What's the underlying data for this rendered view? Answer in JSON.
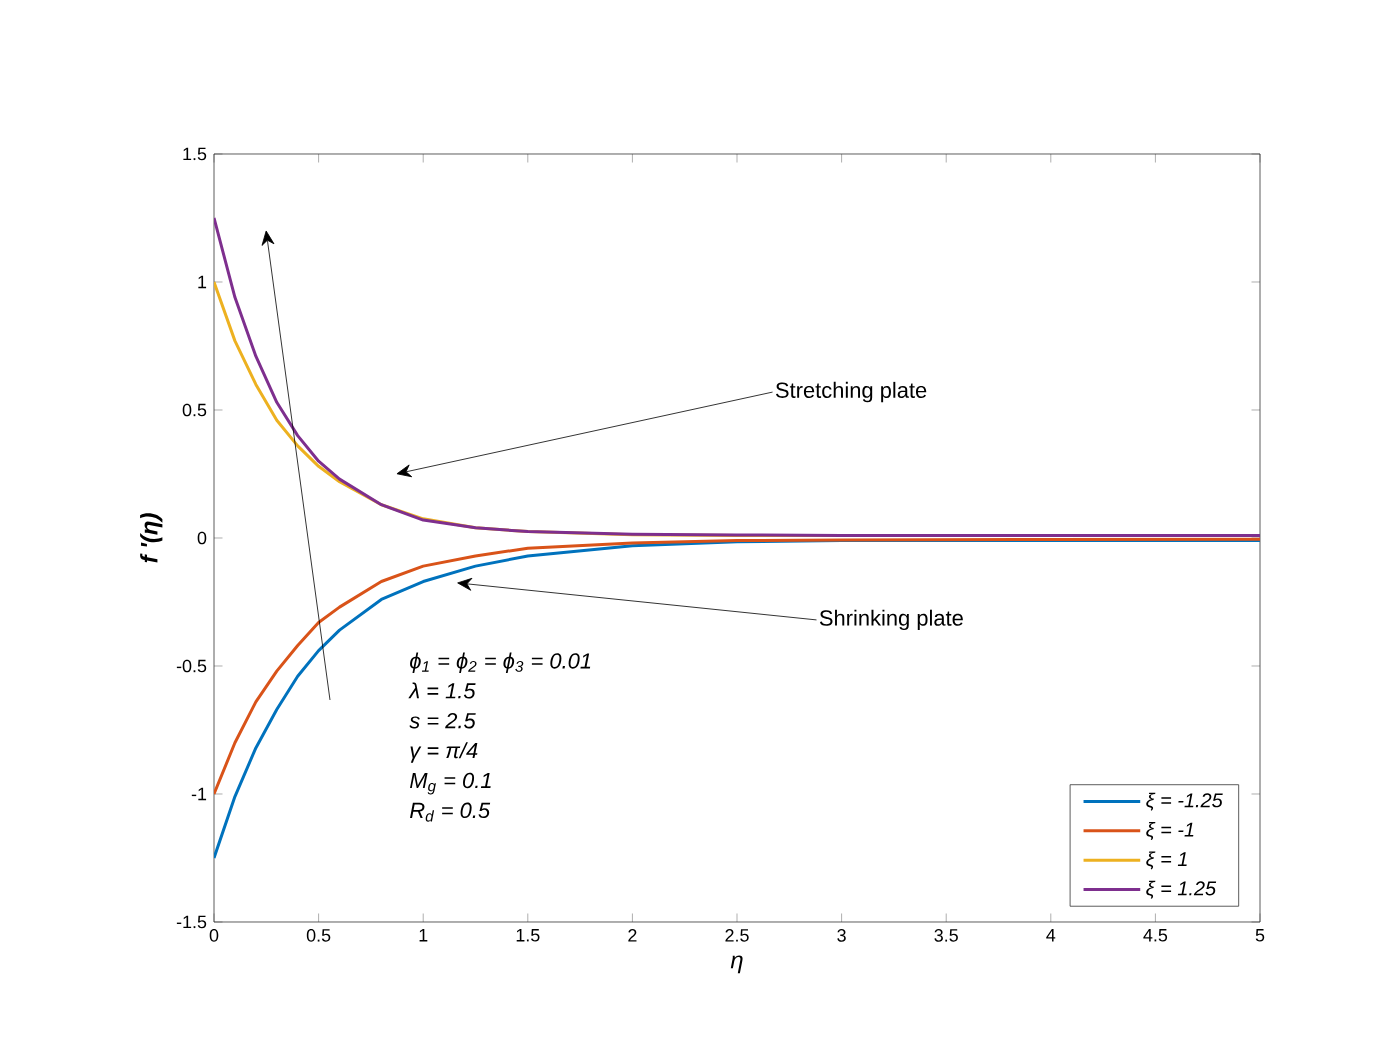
{
  "chart_data": {
    "type": "line",
    "xlabel": "η",
    "ylabel": "f '(η)",
    "x": [
      0,
      0.1,
      0.2,
      0.3,
      0.4,
      0.5,
      0.6,
      0.8,
      1,
      1.25,
      1.5,
      2,
      2.5,
      3,
      4,
      5
    ],
    "series": [
      {
        "name": "ξ = -1.25",
        "color": "#0072bd",
        "values": [
          -1.25,
          -1.01,
          -0.82,
          -0.67,
          -0.54,
          -0.44,
          -0.36,
          -0.24,
          -0.17,
          -0.11,
          -0.07,
          -0.03,
          -0.015,
          -0.01,
          -0.01,
          -0.01
        ]
      },
      {
        "name": "ξ = -1",
        "color": "#d95319",
        "values": [
          -1,
          -0.8,
          -0.64,
          -0.52,
          -0.42,
          -0.33,
          -0.27,
          -0.17,
          -0.11,
          -0.07,
          -0.04,
          -0.02,
          -0.01,
          -0.008,
          -0.006,
          -0.005
        ]
      },
      {
        "name": "ξ = 1",
        "color": "#edb120",
        "values": [
          1,
          0.77,
          0.6,
          0.46,
          0.36,
          0.28,
          0.22,
          0.13,
          0.075,
          0.04,
          0.025,
          0.013,
          0.01,
          0.01,
          null,
          null
        ]
      },
      {
        "name": "ξ = 1.25",
        "color": "#7e2f8e",
        "values": [
          1.25,
          0.94,
          0.71,
          0.53,
          0.4,
          0.3,
          0.23,
          0.13,
          0.07,
          0.04,
          0.025,
          0.015,
          0.012,
          0.01,
          0.01,
          0.01
        ]
      }
    ],
    "xlim": [
      0,
      5
    ],
    "ylim": [
      -1.5,
      1.5
    ],
    "xticks": [
      0,
      0.5,
      1,
      1.5,
      2,
      2.5,
      3,
      3.5,
      4,
      4.5,
      5
    ],
    "yticks": [
      -1.5,
      -1,
      -0.5,
      0,
      0.5,
      1,
      1.5
    ],
    "legend": "bottom right",
    "annotations": [
      "ϕ$_{1}$ = ϕ$_{2}$ = ϕ$_{3}$ = 0.01",
      "λ = 1.5",
      "s = 2.5",
      "γ = π/4",
      "M$_{g}$ = 0.1",
      "R$_{d}$ = 0.5",
      "Stretching plate",
      "Shrinking plate"
    ]
  }
}
